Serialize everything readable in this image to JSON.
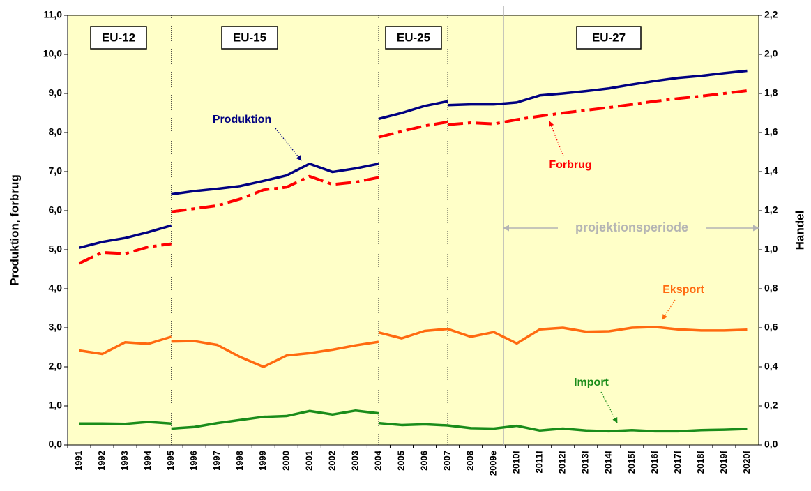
{
  "chart_data": {
    "type": "line",
    "y_label": "Produktion, forbrug",
    "y2_label": "Handel",
    "eras": [
      "EU-12",
      "EU-15",
      "EU-25",
      "EU-27"
    ],
    "projection_label": "projektionsperiode",
    "categories": [
      "1991",
      "1992",
      "1993",
      "1994",
      "1995",
      "1996",
      "1997",
      "1998",
      "1999",
      "2000",
      "2001",
      "2002",
      "2003",
      "2004",
      "2005",
      "2006",
      "2007",
      "2008",
      "2009e",
      "2010f",
      "2011f",
      "2012f",
      "2013f",
      "2014f",
      "2015f",
      "2016f",
      "2017f",
      "2018f",
      "2019f",
      "2020f"
    ],
    "ylim": [
      0,
      11
    ],
    "yticks": [
      {
        "value": 0,
        "label": "0,0"
      },
      {
        "value": 1,
        "label": "1,0"
      },
      {
        "value": 2,
        "label": "2,0"
      },
      {
        "value": 3,
        "label": "3,0"
      },
      {
        "value": 4,
        "label": "4,0"
      },
      {
        "value": 5,
        "label": "5,0"
      },
      {
        "value": 6,
        "label": "6,0"
      },
      {
        "value": 7,
        "label": "7,0"
      },
      {
        "value": 8,
        "label": "8,0"
      },
      {
        "value": 9,
        "label": "9,0"
      },
      {
        "value": 10,
        "label": "10,0"
      },
      {
        "value": 11,
        "label": "11,0"
      }
    ],
    "y2lim": [
      0,
      2.2
    ],
    "y2ticks": [
      {
        "value": 0,
        "label": "0,0"
      },
      {
        "value": 0.2,
        "label": "0,2"
      },
      {
        "value": 0.4,
        "label": "0,4"
      },
      {
        "value": 0.6,
        "label": "0,6"
      },
      {
        "value": 0.8,
        "label": "0,8"
      },
      {
        "value": 1,
        "label": "1,0"
      },
      {
        "value": 1.2,
        "label": "1,2"
      },
      {
        "value": 1.4,
        "label": "1,4"
      },
      {
        "value": 1.6,
        "label": "1,6"
      },
      {
        "value": 1.8,
        "label": "1,8"
      },
      {
        "value": 2,
        "label": "2,0"
      },
      {
        "value": 2.2,
        "label": "2,2"
      }
    ],
    "background": "#ffffc8",
    "series": [
      {
        "name": "Produktion",
        "color": "#000080",
        "style": "solid",
        "axis": "y",
        "pieces": [
          [
            5.05,
            5.2,
            5.3,
            5.45,
            5.62,
            null,
            null,
            null,
            null,
            null,
            null,
            null,
            null,
            null,
            null,
            null,
            null,
            null,
            null,
            null,
            null,
            null,
            null,
            null,
            null,
            null,
            null,
            null,
            null,
            null
          ],
          [
            null,
            null,
            null,
            null,
            6.42,
            6.5,
            6.56,
            6.63,
            6.76,
            6.9,
            7.2,
            6.99,
            7.08,
            7.2,
            null,
            null,
            null,
            null,
            null,
            null,
            null,
            null,
            null,
            null,
            null,
            null,
            null,
            null,
            null,
            null
          ],
          [
            null,
            null,
            null,
            null,
            null,
            null,
            null,
            null,
            null,
            null,
            null,
            null,
            null,
            8.35,
            8.5,
            8.68,
            8.8,
            null,
            null,
            null,
            null,
            null,
            null,
            null,
            null,
            null,
            null,
            null,
            null,
            null
          ],
          [
            null,
            null,
            null,
            null,
            null,
            null,
            null,
            null,
            null,
            null,
            null,
            null,
            null,
            null,
            null,
            null,
            8.7,
            8.72,
            8.72,
            8.77,
            8.95,
            9.0,
            9.06,
            9.13,
            9.23,
            9.32,
            9.4,
            9.45,
            9.52,
            9.58
          ]
        ]
      },
      {
        "name": "Forbrug",
        "color": "#ff0000",
        "style": "dashdot",
        "axis": "y",
        "pieces": [
          [
            4.65,
            4.93,
            4.9,
            5.07,
            5.15,
            null,
            null,
            null,
            null,
            null,
            null,
            null,
            null,
            null,
            null,
            null,
            null,
            null,
            null,
            null,
            null,
            null,
            null,
            null,
            null,
            null,
            null,
            null,
            null,
            null
          ],
          [
            null,
            null,
            null,
            null,
            5.97,
            6.05,
            6.13,
            6.3,
            6.53,
            6.6,
            6.88,
            6.67,
            6.73,
            6.85,
            null,
            null,
            null,
            null,
            null,
            null,
            null,
            null,
            null,
            null,
            null,
            null,
            null,
            null,
            null,
            null
          ],
          [
            null,
            null,
            null,
            null,
            null,
            null,
            null,
            null,
            null,
            null,
            null,
            null,
            null,
            7.88,
            8.03,
            8.17,
            8.27,
            null,
            null,
            null,
            null,
            null,
            null,
            null,
            null,
            null,
            null,
            null,
            null,
            null
          ],
          [
            null,
            null,
            null,
            null,
            null,
            null,
            null,
            null,
            null,
            null,
            null,
            null,
            null,
            null,
            null,
            null,
            8.2,
            8.25,
            8.22,
            8.33,
            8.42,
            8.5,
            8.57,
            8.64,
            8.72,
            8.8,
            8.87,
            8.93,
            9.0,
            9.07
          ]
        ]
      },
      {
        "name": "Eksport",
        "color": "#ff6a10",
        "style": "solid",
        "axis": "y2",
        "pieces": [
          [
            0.484,
            0.466,
            0.526,
            0.518,
            0.554,
            null,
            null,
            null,
            null,
            null,
            null,
            null,
            null,
            null,
            null,
            null,
            null,
            null,
            null,
            null,
            null,
            null,
            null,
            null,
            null,
            null,
            null,
            null,
            null,
            null
          ],
          [
            null,
            null,
            null,
            null,
            0.53,
            0.532,
            0.512,
            0.45,
            0.4,
            0.458,
            0.47,
            0.488,
            0.51,
            0.528,
            null,
            null,
            null,
            null,
            null,
            null,
            null,
            null,
            null,
            null,
            null,
            null,
            null,
            null,
            null,
            null
          ],
          [
            null,
            null,
            null,
            null,
            null,
            null,
            null,
            null,
            null,
            null,
            null,
            null,
            null,
            0.576,
            0.546,
            0.584,
            0.594,
            null,
            null,
            null,
            null,
            null,
            null,
            null,
            null,
            null,
            null,
            null,
            null,
            null
          ],
          [
            null,
            null,
            null,
            null,
            null,
            null,
            null,
            null,
            null,
            null,
            null,
            null,
            null,
            null,
            null,
            null,
            0.594,
            0.554,
            0.578,
            0.52,
            0.592,
            0.6,
            0.58,
            0.582,
            0.6,
            0.604,
            0.592,
            0.586,
            0.586,
            0.59
          ]
        ]
      },
      {
        "name": "Import",
        "color": "#1a8c1a",
        "style": "solid",
        "axis": "y2",
        "pieces": [
          [
            0.11,
            0.11,
            0.108,
            0.118,
            0.11,
            null,
            null,
            null,
            null,
            null,
            null,
            null,
            null,
            null,
            null,
            null,
            null,
            null,
            null,
            null,
            null,
            null,
            null,
            null,
            null,
            null,
            null,
            null,
            null,
            null
          ],
          [
            null,
            null,
            null,
            null,
            0.084,
            0.092,
            0.112,
            0.128,
            0.144,
            0.148,
            0.174,
            0.156,
            0.176,
            0.162,
            null,
            null,
            null,
            null,
            null,
            null,
            null,
            null,
            null,
            null,
            null,
            null,
            null,
            null,
            null,
            null
          ],
          [
            null,
            null,
            null,
            null,
            null,
            null,
            null,
            null,
            null,
            null,
            null,
            null,
            null,
            0.112,
            0.102,
            0.106,
            0.1,
            null,
            null,
            null,
            null,
            null,
            null,
            null,
            null,
            null,
            null,
            null,
            null,
            null
          ],
          [
            null,
            null,
            null,
            null,
            null,
            null,
            null,
            null,
            null,
            null,
            null,
            null,
            null,
            null,
            null,
            null,
            0.1,
            0.086,
            0.084,
            0.098,
            0.074,
            0.084,
            0.074,
            0.07,
            0.076,
            0.07,
            0.07,
            0.076,
            0.078,
            0.082
          ]
        ]
      }
    ]
  }
}
